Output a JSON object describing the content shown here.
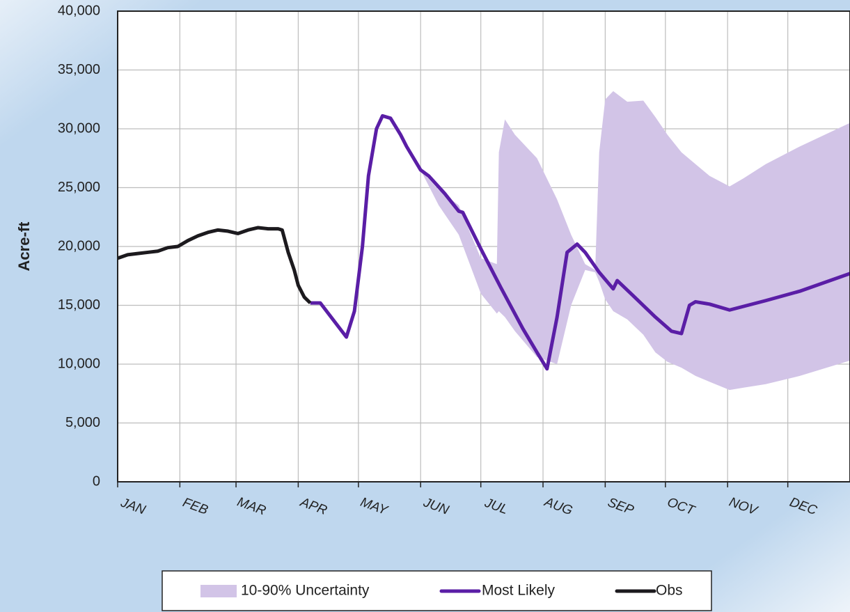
{
  "chart_data": {
    "type": "line",
    "ylabel": "Acre-ft",
    "xlim": [
      0,
      365
    ],
    "xticks": [
      {
        "value": 0,
        "label": "JAN"
      },
      {
        "value": 31,
        "label": "FEB"
      },
      {
        "value": 59,
        "label": "MAR"
      },
      {
        "value": 90,
        "label": "APR"
      },
      {
        "value": 120,
        "label": "MAY"
      },
      {
        "value": 151,
        "label": "JUN"
      },
      {
        "value": 181,
        "label": "JUL"
      },
      {
        "value": 212,
        "label": "AUG"
      },
      {
        "value": 243,
        "label": "SEP"
      },
      {
        "value": 273,
        "label": "OCT"
      },
      {
        "value": 304,
        "label": "NOV"
      },
      {
        "value": 334,
        "label": "DEC"
      }
    ],
    "ylim": [
      0,
      40000
    ],
    "yticks": [
      0,
      {
        "value": 5000,
        "label": "5,000"
      },
      {
        "value": 10000,
        "label": "10,000"
      },
      {
        "value": 15000,
        "label": "15,000"
      },
      {
        "value": 20000,
        "label": "20,000"
      },
      {
        "value": 25000,
        "label": "25,000"
      },
      {
        "value": 30000,
        "label": "30,000"
      },
      {
        "value": 35000,
        "label": "35,000"
      },
      {
        "value": 40000,
        "label": "40,000"
      }
    ],
    "grid": true,
    "legend": "bottom",
    "series": [
      {
        "name": "10-90% Uncertainty",
        "color": "#d2c4e7",
        "x": [
          151,
          160,
          170,
          181,
          189,
          190,
          193,
          198,
          209,
          219,
          226,
          233,
          238,
          240,
          243,
          247,
          254,
          262,
          268,
          274,
          281,
          288,
          295,
          305,
          312,
          323,
          340,
          365
        ],
        "upper": [
          26500,
          24800,
          23500,
          19000,
          18500,
          28000,
          30800,
          29500,
          27500,
          24000,
          21000,
          18500,
          18000,
          28000,
          32500,
          33200,
          32300,
          32400,
          31000,
          29500,
          28000,
          27000,
          26000,
          25100,
          25800,
          27000,
          28500,
          30500
        ],
        "lower": [
          26500,
          23500,
          21000,
          16000,
          14300,
          14500,
          14000,
          12800,
          10600,
          10000,
          15000,
          18000,
          17800,
          17000,
          15500,
          14500,
          13800,
          12500,
          11000,
          10200,
          9700,
          9000,
          8500,
          7800,
          8000,
          8300,
          9000,
          10300
        ]
      },
      {
        "name": "Most Likely",
        "color": "#5a1ea6",
        "x": [
          96,
          101,
          114,
          118,
          122,
          125,
          129,
          132,
          136,
          141,
          144,
          151,
          155,
          163,
          170,
          172,
          181,
          191,
          202,
          209,
          214,
          219,
          224,
          229,
          233,
          240,
          247,
          249,
          257,
          268,
          276,
          281,
          285,
          288,
          295,
          305,
          323,
          340,
          365
        ],
        "values": [
          15200,
          15200,
          12300,
          14500,
          20000,
          26000,
          30000,
          31100,
          30900,
          29500,
          28500,
          26500,
          26000,
          24500,
          23000,
          22900,
          19800,
          16500,
          13000,
          11000,
          9600,
          14000,
          19500,
          20200,
          19500,
          17800,
          16400,
          17100,
          15800,
          14000,
          12800,
          12600,
          15000,
          15300,
          15100,
          14600,
          15400,
          16200,
          17700
        ]
      },
      {
        "name": "Obs",
        "color": "#1c1a1e",
        "x": [
          0,
          5,
          10,
          15,
          20,
          25,
          30,
          35,
          40,
          45,
          50,
          55,
          60,
          65,
          70,
          75,
          80,
          82,
          85,
          88,
          90,
          93,
          96
        ],
        "values": [
          19000,
          19300,
          19400,
          19500,
          19600,
          19900,
          20000,
          20500,
          20900,
          21200,
          21400,
          21300,
          21100,
          21400,
          21600,
          21500,
          21500,
          21400,
          19500,
          18000,
          16700,
          15700,
          15200
        ]
      }
    ]
  }
}
